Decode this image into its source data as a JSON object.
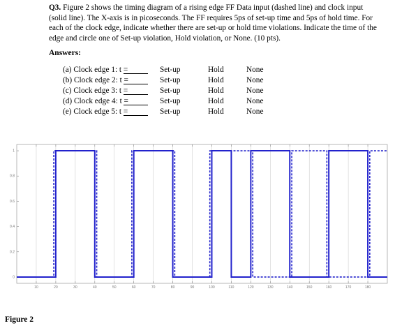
{
  "question": {
    "number": "Q3.",
    "text": "Figure 2 shows the timing diagram of a rising edge FF Data input (dashed line) and clock input (solid line). The X-axis is in picoseconds. The FF requires 5ps of set-up time and 5ps of hold time. For each of the clock edge, indicate whether there are set-up or hold time violations. Indicate the time of the edge and circle one of Set-up violation, Hold violation, or None. (10 pts)."
  },
  "answers_heading": "Answers:",
  "answers": [
    {
      "label": "(a) Clock edge 1: t =",
      "setup": "Set-up",
      "hold": "Hold",
      "none": "None"
    },
    {
      "label": "(b) Clock edge 2: t =",
      "setup": "Set-up",
      "hold": "Hold",
      "none": "None"
    },
    {
      "label": "(c) Clock edge 3: t =",
      "setup": "Set-up",
      "hold": "Hold",
      "none": "None"
    },
    {
      "label": "(d) Clock edge 4: t =",
      "setup": "Set-up",
      "hold": "Hold",
      "none": "None"
    },
    {
      "label": "(e) Clock edge 5: t =",
      "setup": "Set-up",
      "hold": "Hold",
      "none": "None"
    }
  ],
  "figure_label": "Figure 2",
  "colors": {
    "signal": "#2222cc",
    "grid": "#cfcfcf",
    "axis": "#888888"
  },
  "chart_data": {
    "type": "line",
    "xlim": [
      0,
      190
    ],
    "ylim": [
      -0.05,
      1.05
    ],
    "x_ticks": [
      10,
      20,
      30,
      40,
      50,
      60,
      70,
      80,
      90,
      100,
      110,
      120,
      130,
      140,
      150,
      160,
      170,
      180
    ],
    "y_ticks": [
      0,
      0.2,
      0.4,
      0.6,
      0.8,
      1
    ],
    "y_tick_labels": [
      "0",
      "0.2",
      "0.4",
      "0.6",
      "0.8",
      "1"
    ],
    "grid": true,
    "series": [
      {
        "style": "solid",
        "x": [
          0,
          20,
          20,
          40,
          40,
          60,
          60,
          80,
          80,
          100,
          100,
          110,
          110,
          120,
          120,
          140,
          140,
          160,
          160,
          180,
          180,
          190
        ],
        "y": [
          0,
          0,
          1,
          1,
          0,
          0,
          1,
          1,
          0,
          0,
          1,
          1,
          0,
          0,
          1,
          1,
          0,
          0,
          1,
          1,
          0,
          0
        ]
      },
      {
        "style": "dashed",
        "x": [
          0,
          19,
          19,
          41,
          41,
          59,
          59,
          81,
          81,
          99,
          99,
          121,
          121,
          141,
          141,
          159,
          159,
          181,
          181,
          190
        ],
        "y": [
          0,
          0,
          1,
          1,
          0,
          0,
          1,
          1,
          0,
          0,
          1,
          1,
          0,
          0,
          1,
          1,
          0,
          0,
          1,
          1
        ]
      }
    ]
  }
}
